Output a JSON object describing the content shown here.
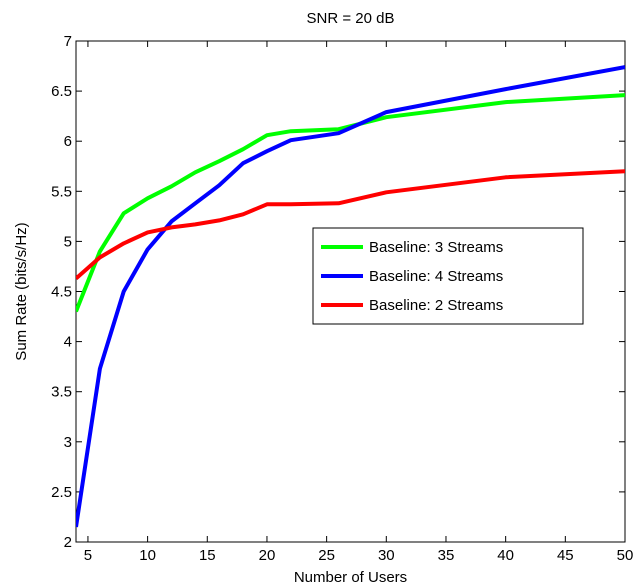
{
  "chart_data": {
    "type": "line",
    "title": "SNR = 20 dB",
    "xlabel": "Number of Users",
    "ylabel": "Sum Rate (bits/s/Hz)",
    "xlim": [
      4,
      50
    ],
    "ylim": [
      2,
      7
    ],
    "xticks": [
      5,
      10,
      15,
      20,
      25,
      30,
      35,
      40,
      45,
      50
    ],
    "yticks": [
      2,
      2.5,
      3,
      3.5,
      4,
      4.5,
      5,
      5.5,
      6,
      6.5,
      7
    ],
    "grid": false,
    "legend_position": "center-right",
    "series": [
      {
        "name": "Baseline: 3 Streams",
        "color": "#00ff00",
        "x": [
          4,
          6,
          8,
          10,
          12,
          14,
          16,
          18,
          20,
          22,
          26,
          30,
          40,
          50
        ],
        "y": [
          4.3,
          4.9,
          5.28,
          5.43,
          5.55,
          5.69,
          5.8,
          5.92,
          6.06,
          6.1,
          6.12,
          6.24,
          6.39,
          6.46
        ]
      },
      {
        "name": "Baseline: 4 Streams",
        "color": "#0000ff",
        "x": [
          4,
          6,
          8,
          10,
          12,
          14,
          16,
          18,
          20,
          22,
          26,
          30,
          40,
          50
        ],
        "y": [
          2.15,
          3.73,
          4.5,
          4.92,
          5.2,
          5.38,
          5.56,
          5.78,
          5.9,
          6.01,
          6.08,
          6.29,
          6.52,
          6.74
        ]
      },
      {
        "name": "Baseline: 2 Streams",
        "color": "#ff0000",
        "x": [
          4,
          6,
          8,
          10,
          12,
          14,
          16,
          18,
          20,
          22,
          26,
          30,
          40,
          50
        ],
        "y": [
          4.63,
          4.84,
          4.98,
          5.09,
          5.14,
          5.17,
          5.21,
          5.27,
          5.37,
          5.37,
          5.38,
          5.49,
          5.64,
          5.7
        ]
      }
    ]
  }
}
